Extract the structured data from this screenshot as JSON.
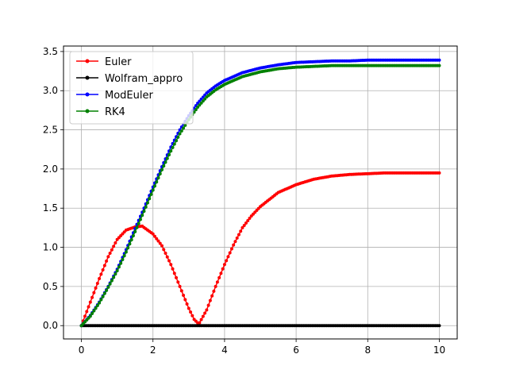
{
  "chart_data": {
    "type": "line",
    "title": "",
    "xlabel": "",
    "ylabel": "",
    "xlim": [
      -0.5,
      10.5
    ],
    "ylim": [
      -0.17,
      3.57
    ],
    "xticks": [
      0,
      2,
      4,
      6,
      8,
      10
    ],
    "yticks": [
      0.0,
      0.5,
      1.0,
      1.5,
      2.0,
      2.5,
      3.0,
      3.5
    ],
    "xtick_labels": [
      "0",
      "2",
      "4",
      "6",
      "8",
      "10"
    ],
    "ytick_labels": [
      "0.0",
      "0.5",
      "1.0",
      "1.5",
      "2.0",
      "2.5",
      "3.0",
      "3.5"
    ],
    "grid": true,
    "legend_position": "top-left",
    "series": [
      {
        "name": "Euler",
        "color": "#ff0000",
        "x": [
          0,
          0.25,
          0.5,
          0.75,
          1.0,
          1.25,
          1.5,
          1.7,
          2.0,
          2.25,
          2.5,
          2.75,
          3.0,
          3.15,
          3.28,
          3.5,
          3.75,
          4.0,
          4.25,
          4.5,
          4.75,
          5.0,
          5.5,
          6.0,
          6.5,
          7.0,
          7.5,
          8.0,
          8.5,
          9.0,
          9.5,
          10.0
        ],
        "y": [
          0.0,
          0.3,
          0.6,
          0.88,
          1.1,
          1.22,
          1.26,
          1.27,
          1.17,
          1.02,
          0.78,
          0.5,
          0.22,
          0.08,
          0.02,
          0.2,
          0.5,
          0.78,
          1.03,
          1.25,
          1.4,
          1.52,
          1.7,
          1.8,
          1.87,
          1.91,
          1.93,
          1.94,
          1.95,
          1.95,
          1.95,
          1.95
        ]
      },
      {
        "name": "Wolfram_appro",
        "color": "#000000",
        "x": [
          0,
          10
        ],
        "y": [
          0.0,
          0.0
        ]
      },
      {
        "name": "ModEuler",
        "color": "#0000ff",
        "x": [
          0,
          0.25,
          0.5,
          0.75,
          1.0,
          1.25,
          1.5,
          1.75,
          2.0,
          2.25,
          2.5,
          2.75,
          3.0,
          3.25,
          3.5,
          3.75,
          4.0,
          4.5,
          5.0,
          5.5,
          6.0,
          6.5,
          7.0,
          7.5,
          8.0,
          8.5,
          9.0,
          9.5,
          10.0
        ],
        "y": [
          0.0,
          0.13,
          0.3,
          0.5,
          0.72,
          0.97,
          1.24,
          1.5,
          1.77,
          2.03,
          2.28,
          2.5,
          2.68,
          2.84,
          2.97,
          3.06,
          3.13,
          3.23,
          3.29,
          3.33,
          3.36,
          3.37,
          3.38,
          3.38,
          3.39,
          3.39,
          3.39,
          3.39,
          3.39
        ]
      },
      {
        "name": "RK4",
        "color": "#008000",
        "x": [
          0,
          0.25,
          0.5,
          0.75,
          1.0,
          1.25,
          1.5,
          1.75,
          2.0,
          2.25,
          2.5,
          2.75,
          3.0,
          3.25,
          3.5,
          3.75,
          4.0,
          4.5,
          5.0,
          5.5,
          6.0,
          6.5,
          7.0,
          7.5,
          8.0,
          8.5,
          9.0,
          9.5,
          10.0
        ],
        "y": [
          0.0,
          0.12,
          0.29,
          0.49,
          0.7,
          0.94,
          1.2,
          1.46,
          1.73,
          1.99,
          2.23,
          2.45,
          2.63,
          2.79,
          2.92,
          3.01,
          3.08,
          3.18,
          3.24,
          3.28,
          3.3,
          3.31,
          3.32,
          3.32,
          3.32,
          3.32,
          3.32,
          3.32,
          3.32
        ]
      }
    ]
  }
}
